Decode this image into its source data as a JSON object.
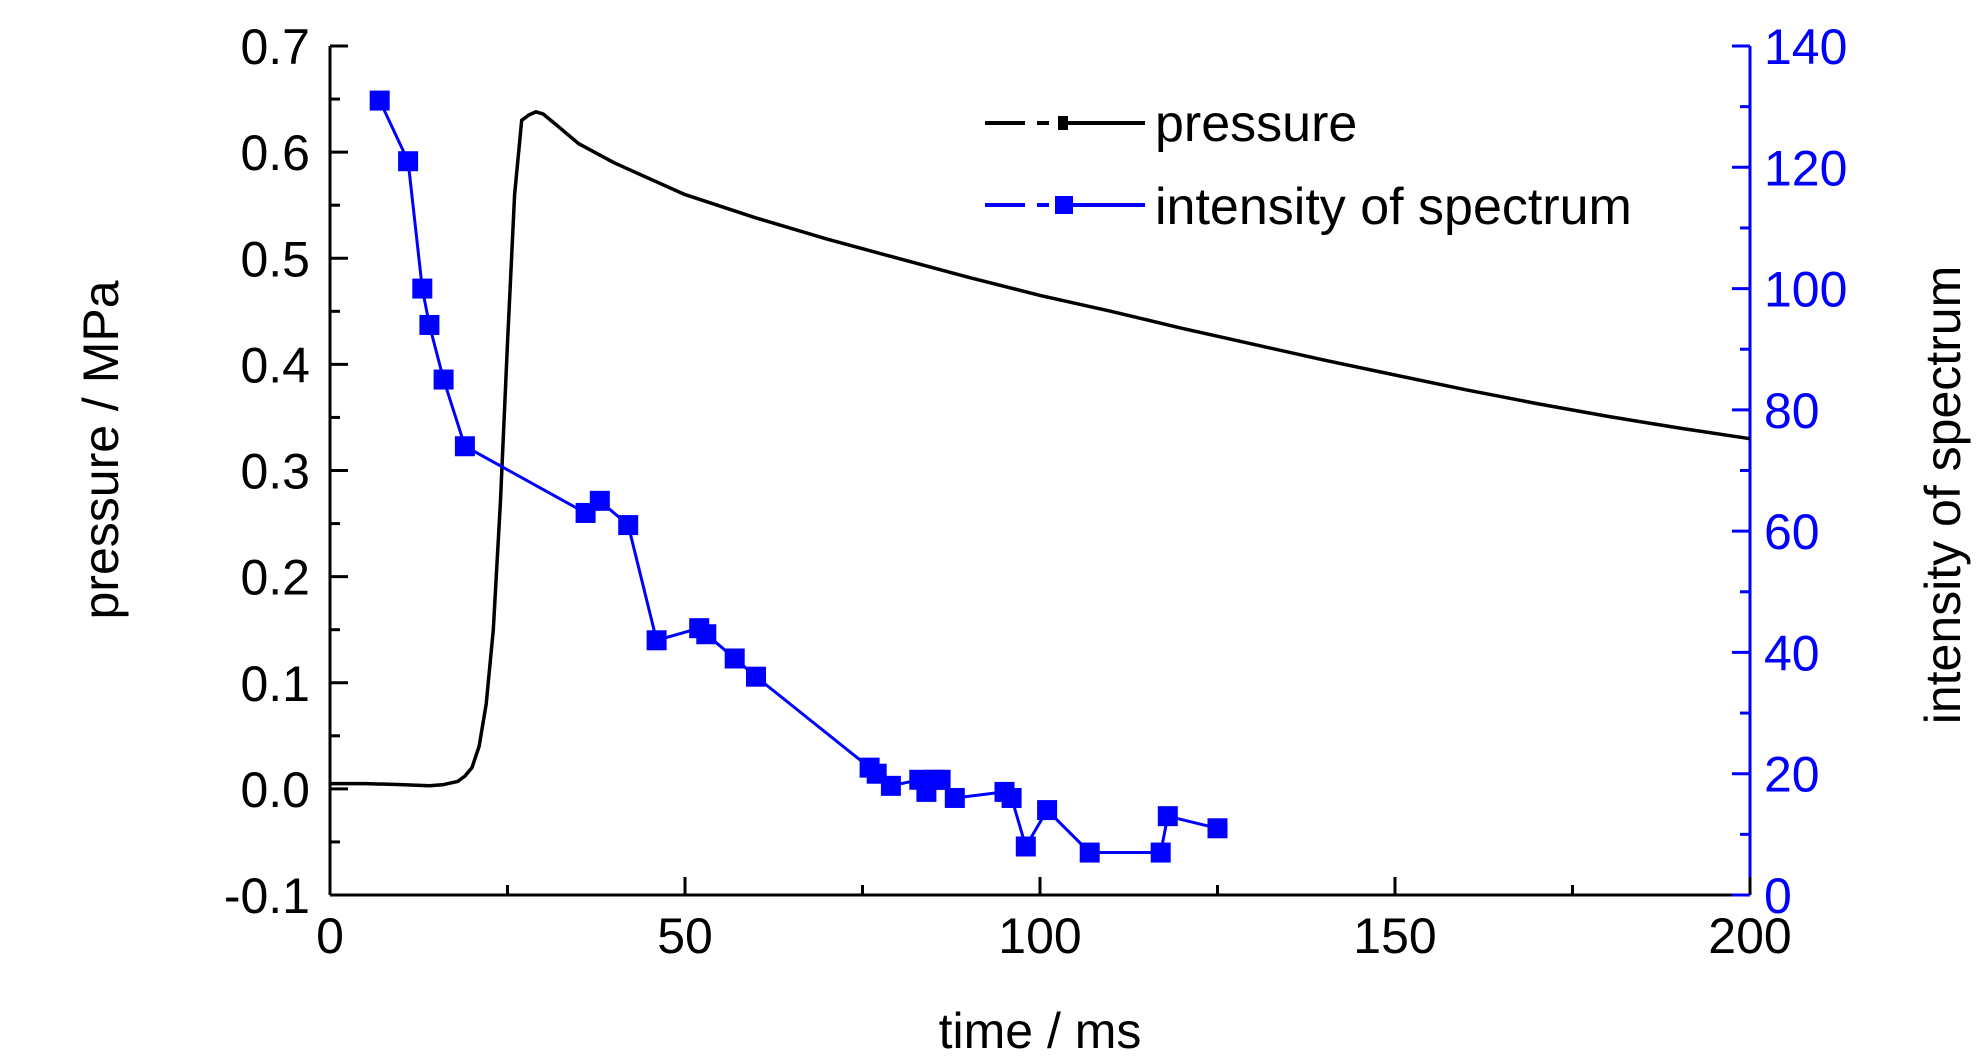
{
  "chart_data": {
    "type": "line",
    "xlabel": "time / ms",
    "ylabel_left": "pressure / MPa",
    "ylabel_right": "intensity of spectrum",
    "xlim": [
      0,
      200
    ],
    "ylim_left": [
      -0.1,
      0.7
    ],
    "ylim_right": [
      0,
      140
    ],
    "x_ticks": [
      "0",
      "50",
      "100",
      "150",
      "200"
    ],
    "y_left_ticks": [
      "-0.1",
      "0.0",
      "0.1",
      "0.2",
      "0.3",
      "0.4",
      "0.5",
      "0.6",
      "0.7"
    ],
    "y_right_ticks": [
      "0",
      "20",
      "40",
      "60",
      "80",
      "100",
      "120",
      "140"
    ],
    "grid": false,
    "legend_position": "top-right",
    "colors": {
      "pressure": "#000000",
      "intensity": "#0000ff"
    },
    "series": [
      {
        "name": "pressure",
        "axis": "left",
        "style": "line",
        "x": [
          0,
          5,
          10,
          14,
          16,
          18,
          19,
          20,
          21,
          22,
          23,
          24,
          25,
          26,
          27,
          28,
          29,
          30,
          32,
          35,
          40,
          45,
          50,
          60,
          70,
          80,
          90,
          100,
          110,
          120,
          130,
          140,
          150,
          160,
          170,
          180,
          190,
          200
        ],
        "y": [
          0.005,
          0.005,
          0.004,
          0.003,
          0.004,
          0.007,
          0.012,
          0.02,
          0.04,
          0.08,
          0.15,
          0.27,
          0.42,
          0.56,
          0.63,
          0.635,
          0.638,
          0.636,
          0.625,
          0.608,
          0.59,
          0.575,
          0.56,
          0.538,
          0.518,
          0.5,
          0.482,
          0.465,
          0.45,
          0.434,
          0.419,
          0.404,
          0.39,
          0.376,
          0.363,
          0.351,
          0.34,
          0.33
        ]
      },
      {
        "name": "intensity of spectrum",
        "axis": "right",
        "style": "line-marker",
        "x": [
          7,
          11,
          13,
          14,
          16,
          19,
          36,
          38,
          42,
          46,
          52,
          53,
          57,
          60,
          76,
          77,
          79,
          83,
          84,
          85,
          86,
          88,
          95,
          96,
          98,
          101,
          107,
          117,
          118,
          125
        ],
        "y": [
          131,
          121,
          100,
          94,
          85,
          74,
          63,
          65,
          61,
          42,
          44,
          43,
          39,
          36,
          21,
          20,
          18,
          19,
          17,
          19,
          19,
          16,
          17,
          16,
          8,
          14,
          7,
          7,
          13,
          11
        ]
      }
    ]
  }
}
